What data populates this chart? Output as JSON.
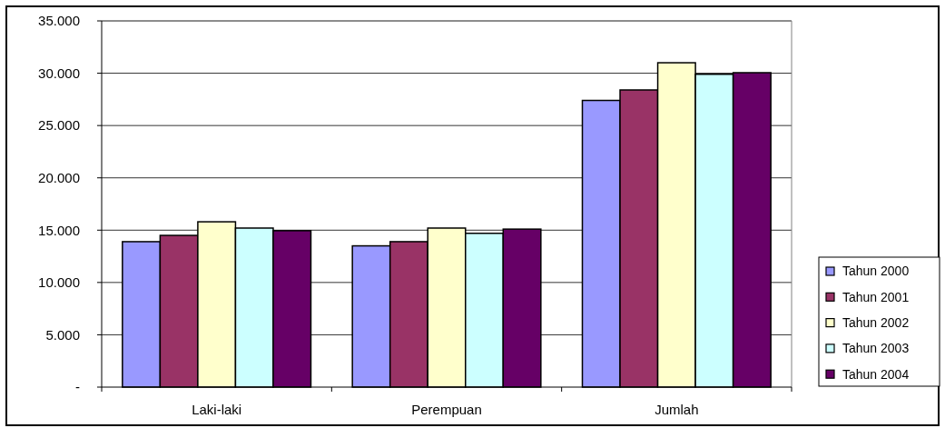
{
  "chart_data": {
    "type": "bar",
    "categories": [
      "Laki-laki",
      "Perempuan",
      "Jumlah"
    ],
    "series": [
      {
        "name": "Tahun 2000",
        "color": "#9999ff",
        "values": [
          13900,
          13500,
          27400
        ]
      },
      {
        "name": "Tahun 2001",
        "color": "#993366",
        "values": [
          14500,
          13900,
          28400
        ]
      },
      {
        "name": "Tahun 2002",
        "color": "#ffffcc",
        "values": [
          15800,
          15200,
          31000
        ]
      },
      {
        "name": "Tahun 2003",
        "color": "#ccffff",
        "values": [
          15200,
          14700,
          29900
        ]
      },
      {
        "name": "Tahun 2004",
        "color": "#660066",
        "values": [
          14950,
          15100,
          30050
        ]
      }
    ],
    "ylim": [
      0,
      35000
    ],
    "yticks": [
      {
        "value": 0,
        "label": "-"
      },
      {
        "value": 5000,
        "label": "5.000"
      },
      {
        "value": 10000,
        "label": "10.000"
      },
      {
        "value": 15000,
        "label": "15.000"
      },
      {
        "value": 20000,
        "label": "20.000"
      },
      {
        "value": 25000,
        "label": "25.000"
      },
      {
        "value": 30000,
        "label": "30.000"
      },
      {
        "value": 35000,
        "label": "35.000"
      }
    ],
    "grid": "y",
    "legend": "right"
  }
}
